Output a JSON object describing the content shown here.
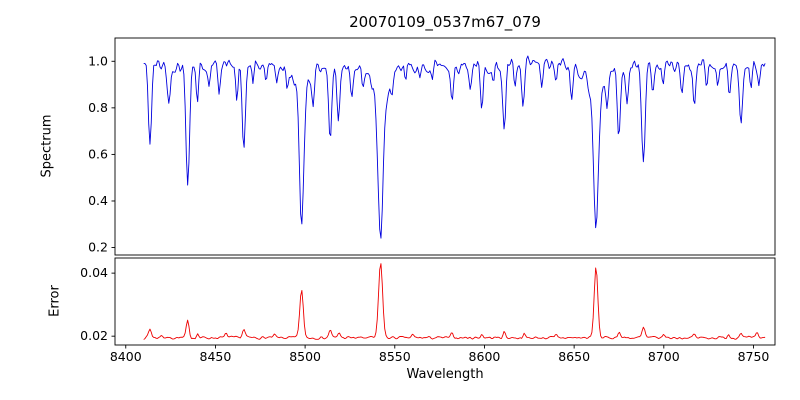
{
  "chart_data": [
    {
      "type": "line",
      "name": "spectrum",
      "title": "20070109_0537m67_079",
      "ylabel": "Spectrum",
      "color": "#0000dd",
      "ylim": [
        0.168,
        1.1
      ],
      "yticks": [
        0.2,
        0.4,
        0.6,
        0.8,
        1.0
      ],
      "ytick_labels": [
        "0.2",
        "0.4",
        "0.6",
        "0.8",
        "1.0"
      ],
      "x_start": 8410,
      "x_end": 8757,
      "x_step": 0.7,
      "level": 0.985,
      "noise_amplitude": 0.045,
      "noise_seed": 42,
      "absorption_lines": [
        [
          8413.5,
          0.33,
          0.9
        ],
        [
          8424.0,
          0.17,
          0.8
        ],
        [
          8434.5,
          0.5,
          1.0
        ],
        [
          8440.0,
          0.15,
          0.7
        ],
        [
          8446.5,
          0.11,
          0.7
        ],
        [
          8452.0,
          0.09,
          0.6
        ],
        [
          8462.0,
          0.16,
          0.7
        ],
        [
          8465.8,
          0.36,
          0.9
        ],
        [
          8471.0,
          0.11,
          0.6
        ],
        [
          8478.0,
          0.08,
          0.6
        ],
        [
          8484.0,
          0.07,
          0.6
        ],
        [
          8490.0,
          0.09,
          0.6
        ],
        [
          8498.0,
          0.6,
          1.2
        ],
        [
          8498.0,
          0.09,
          5.0
        ],
        [
          8504.5,
          0.11,
          0.7
        ],
        [
          8514.0,
          0.32,
          0.9
        ],
        [
          8518.5,
          0.24,
          0.8
        ],
        [
          8526.0,
          0.11,
          0.7
        ],
        [
          8532.0,
          0.08,
          0.6
        ],
        [
          8542.1,
          0.65,
          1.4
        ],
        [
          8542.1,
          0.12,
          6.0
        ],
        [
          8548.5,
          0.09,
          0.7
        ],
        [
          8556.0,
          0.07,
          0.6
        ],
        [
          8564.0,
          0.09,
          0.7
        ],
        [
          8571.0,
          0.07,
          0.6
        ],
        [
          8582.0,
          0.15,
          0.8
        ],
        [
          8592.0,
          0.09,
          0.7
        ],
        [
          8598.5,
          0.21,
          0.8
        ],
        [
          8605.0,
          0.09,
          0.6
        ],
        [
          8611.0,
          0.28,
          0.9
        ],
        [
          8617.0,
          0.11,
          0.7
        ],
        [
          8621.5,
          0.19,
          0.8
        ],
        [
          8632.0,
          0.09,
          0.7
        ],
        [
          8640.0,
          0.09,
          0.6
        ],
        [
          8648.5,
          0.15,
          0.8
        ],
        [
          8662.2,
          0.62,
          1.3
        ],
        [
          8662.2,
          0.11,
          5.0
        ],
        [
          8668.5,
          0.13,
          0.7
        ],
        [
          8674.8,
          0.28,
          0.9
        ],
        [
          8679.5,
          0.19,
          0.8
        ],
        [
          8688.7,
          0.42,
          1.0
        ],
        [
          8694.0,
          0.11,
          0.7
        ],
        [
          8699.5,
          0.09,
          0.6
        ],
        [
          8710.0,
          0.13,
          0.7
        ],
        [
          8717.0,
          0.17,
          0.8
        ],
        [
          8724.0,
          0.09,
          0.6
        ],
        [
          8730.0,
          0.09,
          0.6
        ],
        [
          8736.5,
          0.15,
          0.7
        ],
        [
          8743.0,
          0.24,
          0.9
        ],
        [
          8748.5,
          0.11,
          0.7
        ],
        [
          8753.0,
          0.09,
          0.6
        ]
      ]
    },
    {
      "type": "line",
      "name": "error",
      "ylabel": "Error",
      "xlabel": "Wavelength",
      "color": "#ee0000",
      "ylim": [
        0.0172,
        0.0448
      ],
      "yticks": [
        0.02,
        0.04
      ],
      "ytick_labels": [
        "0.02",
        "0.04"
      ],
      "x_start": 8410,
      "x_end": 8757,
      "x_step": 0.7,
      "level": 0.0195,
      "noise_amplitude": 0.0006,
      "noise_seed": 7,
      "peaks": [
        [
          8413.5,
          0.0028,
          0.8
        ],
        [
          8420.0,
          0.001,
          0.6
        ],
        [
          8434.5,
          0.0052,
          0.8
        ],
        [
          8440.0,
          0.0013,
          0.6
        ],
        [
          8456.0,
          0.0016,
          0.6
        ],
        [
          8465.8,
          0.0026,
          0.8
        ],
        [
          8483.0,
          0.0009,
          0.6
        ],
        [
          8498.0,
          0.015,
          1.0
        ],
        [
          8514.0,
          0.0026,
          0.7
        ],
        [
          8519.0,
          0.0016,
          0.7
        ],
        [
          8542.1,
          0.024,
          1.1
        ],
        [
          8560.0,
          0.0009,
          0.6
        ],
        [
          8582.0,
          0.0013,
          0.7
        ],
        [
          8598.5,
          0.0012,
          0.6
        ],
        [
          8611.0,
          0.0018,
          0.7
        ],
        [
          8622.0,
          0.0012,
          0.6
        ],
        [
          8640.0,
          0.0009,
          0.5
        ],
        [
          8662.2,
          0.0225,
          1.0
        ],
        [
          8675.0,
          0.002,
          0.7
        ],
        [
          8688.7,
          0.0032,
          0.8
        ],
        [
          8700.0,
          0.0011,
          0.6
        ],
        [
          8717.0,
          0.0012,
          0.6
        ],
        [
          8736.0,
          0.0012,
          0.6
        ],
        [
          8743.0,
          0.0018,
          0.7
        ],
        [
          8752.0,
          0.0014,
          0.6
        ]
      ]
    }
  ],
  "axes": {
    "xlim": [
      8394,
      8762
    ],
    "xticks": [
      8400,
      8450,
      8500,
      8550,
      8600,
      8650,
      8700,
      8750
    ],
    "xtick_labels": [
      "8400",
      "8450",
      "8500",
      "8550",
      "8600",
      "8650",
      "8700",
      "8750"
    ],
    "frame_color": "#000000",
    "tick_label_color": "#000000"
  }
}
